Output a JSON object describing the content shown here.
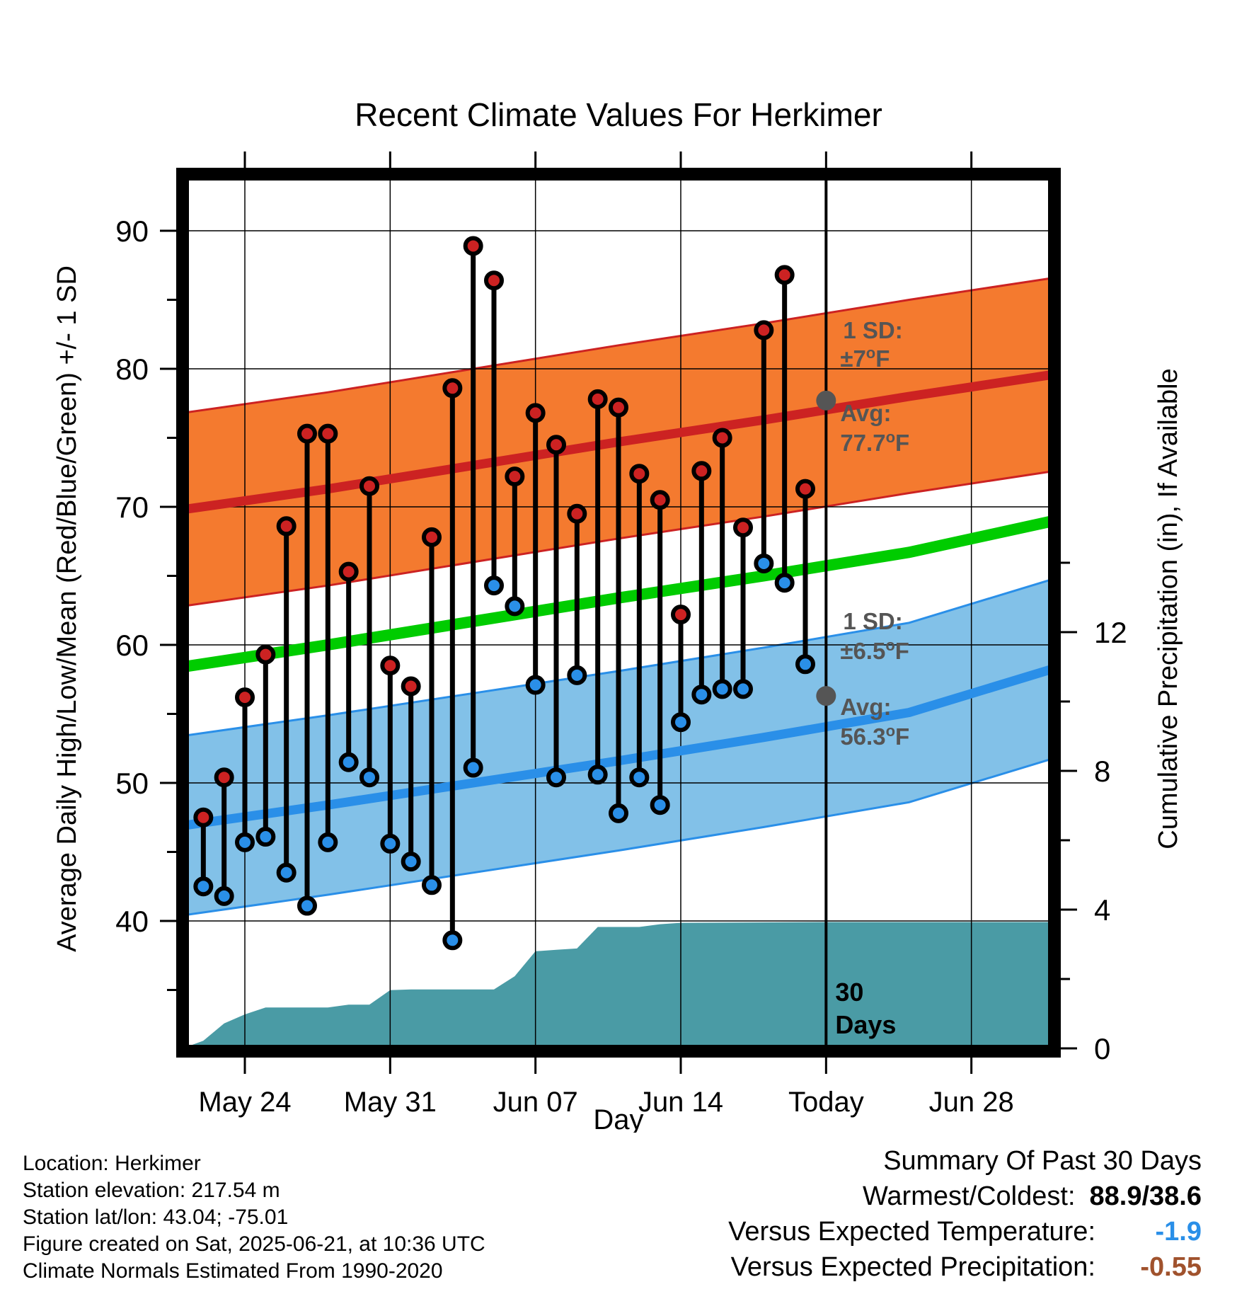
{
  "chart_data": {
    "type": "line",
    "title": "Recent Climate Values For Herkimer",
    "xlabel": "Day",
    "ylabel": "Average Daily High/Low/Mean (Red/Blue/Green) +/- 1 SD",
    "y2label": "Cumulative Precipitation (in), If Available",
    "x_start": "2025-05-21",
    "x_end": "2025-07-02",
    "xlim": [
      "2025-05-21",
      "2025-07-02"
    ],
    "ylim": [
      30,
      94
    ],
    "y2lim": [
      0,
      19.2
    ],
    "grid": true,
    "x_ticks": [
      {
        "date": "2025-05-24",
        "label": "May 24"
      },
      {
        "date": "2025-05-31",
        "label": "May 31"
      },
      {
        "date": "2025-06-07",
        "label": "Jun 07"
      },
      {
        "date": "2025-06-14",
        "label": "Jun 14"
      },
      {
        "date": "2025-06-21",
        "label": "Today"
      },
      {
        "date": "2025-06-28",
        "label": "Jun 28"
      }
    ],
    "y_ticks": [
      40,
      50,
      60,
      70,
      80,
      90
    ],
    "y2_ticks": [
      0,
      4,
      8,
      12
    ],
    "normals": {
      "dates": [
        "2025-05-21",
        "2025-05-28",
        "2025-06-04",
        "2025-06-11",
        "2025-06-18",
        "2025-06-25",
        "2025-07-02"
      ],
      "avg_high": [
        69.8,
        71.3,
        73.0,
        74.7,
        76.3,
        78.0,
        79.6
      ],
      "avg_low": [
        46.9,
        48.4,
        50.0,
        51.6,
        53.3,
        55.1,
        58.3
      ],
      "avg_mean": [
        58.4,
        60.0,
        61.7,
        63.4,
        65.0,
        66.7,
        69.0
      ],
      "high_sd": 7,
      "low_sd": 6.5
    },
    "series": [
      {
        "name": "High",
        "color": "#cc2222",
        "values": [
          47.5,
          50.4,
          56.2,
          59.3,
          68.6,
          75.3,
          75.3,
          65.3,
          71.5,
          58.5,
          57.0,
          67.8,
          78.6,
          88.9,
          86.4,
          72.2,
          76.8,
          74.5,
          69.5,
          77.8,
          77.2,
          72.4,
          70.5,
          62.2,
          72.6,
          75.0,
          68.5,
          82.8,
          86.8,
          71.3
        ]
      },
      {
        "name": "Low",
        "color": "#2a8fe8",
        "values": [
          42.5,
          41.8,
          45.7,
          46.1,
          43.5,
          41.1,
          45.7,
          51.5,
          50.4,
          45.6,
          44.3,
          42.6,
          38.6,
          51.1,
          64.3,
          62.8,
          57.1,
          50.4,
          57.8,
          50.6,
          47.8,
          50.4,
          48.4,
          54.4,
          56.4,
          56.8,
          56.8,
          65.9,
          64.5,
          58.6
        ]
      }
    ],
    "obs_dates": [
      "2025-05-22",
      "2025-05-23",
      "2025-05-24",
      "2025-05-25",
      "2025-05-26",
      "2025-05-27",
      "2025-05-28",
      "2025-05-29",
      "2025-05-30",
      "2025-05-31",
      "2025-06-01",
      "2025-06-02",
      "2025-06-03",
      "2025-06-04",
      "2025-06-05",
      "2025-06-06",
      "2025-06-07",
      "2025-06-08",
      "2025-06-09",
      "2025-06-10",
      "2025-06-11",
      "2025-06-12",
      "2025-06-13",
      "2025-06-14",
      "2025-06-15",
      "2025-06-16",
      "2025-06-17",
      "2025-06-18",
      "2025-06-19",
      "2025-06-20"
    ],
    "precip_cumulative": {
      "dates": [
        "2025-05-21",
        "2025-05-22",
        "2025-05-23",
        "2025-05-24",
        "2025-05-25",
        "2025-05-26",
        "2025-05-27",
        "2025-05-28",
        "2025-05-29",
        "2025-05-30",
        "2025-05-31",
        "2025-06-01",
        "2025-06-02",
        "2025-06-03",
        "2025-06-04",
        "2025-06-05",
        "2025-06-06",
        "2025-06-07",
        "2025-06-08",
        "2025-06-09",
        "2025-06-10",
        "2025-06-11",
        "2025-06-12",
        "2025-06-13",
        "2025-06-14",
        "2025-06-21",
        "2025-07-02"
      ],
      "values": [
        0,
        0.22,
        0.72,
        0.98,
        1.18,
        1.18,
        1.18,
        1.18,
        1.26,
        1.26,
        1.68,
        1.7,
        1.7,
        1.7,
        1.7,
        1.7,
        2.08,
        2.8,
        2.84,
        2.88,
        3.5,
        3.5,
        3.5,
        3.58,
        3.62,
        3.64,
        3.64
      ],
      "color": "#4a9ba5"
    },
    "today_line": "2025-06-21",
    "colors": {
      "high_band": "#f47a2f",
      "low_band": "#82c1e8",
      "high_avg": "#cc2222",
      "low_avg": "#2a8fe8",
      "mean_avg": "#00cc00",
      "precip": "#4a9ba5",
      "annotation": "#555555",
      "temp_anomaly": "#2a8fe8",
      "precip_anomaly": "#a0522d"
    },
    "annotations": {
      "high_sd_label": "1 SD:",
      "high_sd_value": "±7",
      "high_avg_label": "Avg:",
      "high_avg_value": "77.7",
      "low_sd_label": "1 SD:",
      "low_sd_value": "±6.5",
      "low_avg_label": "Avg:",
      "low_avg_value": "56.3",
      "degree_unit": "o",
      "f_unit": "F",
      "days_line1": "30",
      "days_line2": "Days"
    }
  },
  "footer": {
    "location": "Location: Herkimer",
    "elevation": "Station elevation: 217.54 m",
    "latlon": "Station lat/lon: 43.04; -75.01",
    "created": "Figure created on Sat, 2025-06-21, at 10:36 UTC",
    "normals": "Climate Normals Estimated From 1990-2020"
  },
  "summary": {
    "heading": "Summary Of Past 30 Days",
    "warm_cold_label": "Warmest/Coldest:",
    "warm_cold_value": "88.9/38.6",
    "temp_label": "Versus Expected Temperature:",
    "temp_value": "-1.9",
    "precip_label": "Versus Expected Precipitation:",
    "precip_value": "-0.55"
  }
}
